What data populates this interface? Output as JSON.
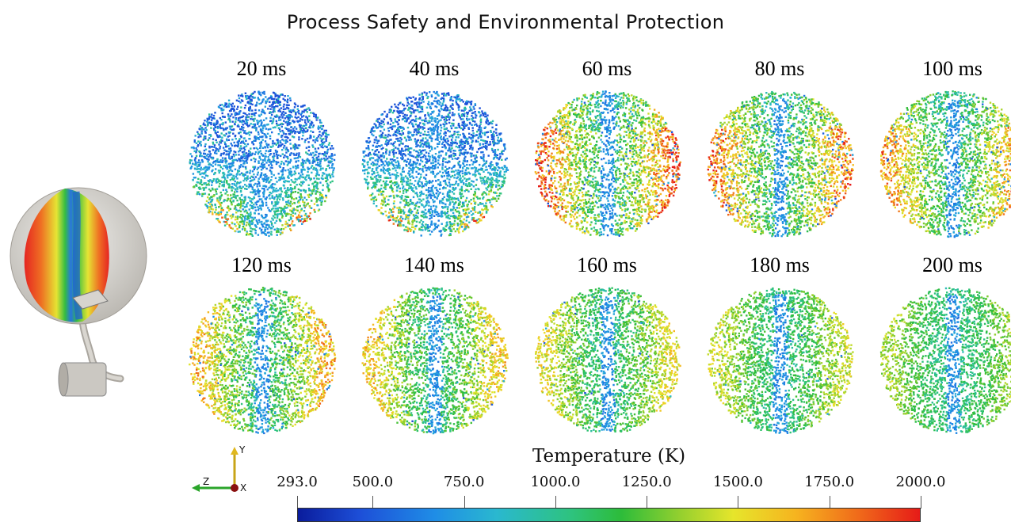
{
  "header": {
    "title": "Process Safety and Environmental Protection"
  },
  "frames": [
    {
      "label": "20 ms",
      "progress": 0.0
    },
    {
      "label": "40 ms",
      "progress": 0.11
    },
    {
      "label": "60 ms",
      "progress": 0.22
    },
    {
      "label": "80 ms",
      "progress": 0.33
    },
    {
      "label": "100 ms",
      "progress": 0.44
    },
    {
      "label": "120 ms",
      "progress": 0.55
    },
    {
      "label": "140 ms",
      "progress": 0.66
    },
    {
      "label": "160 ms",
      "progress": 0.77
    },
    {
      "label": "180 ms",
      "progress": 0.88
    },
    {
      "label": "200 ms",
      "progress": 1.0
    }
  ],
  "colorbar": {
    "title": "Temperature (K)",
    "ticks": [
      "293.0",
      "500.0",
      "750.0",
      "1000.0",
      "1250.0",
      "1500.0",
      "1750.0",
      "2000.0"
    ],
    "tick_values": [
      293,
      500,
      750,
      1000,
      1250,
      1500,
      1750,
      2000
    ],
    "min": 293,
    "max": 2000,
    "colors": [
      "#0a1c9c",
      "#1f8de6",
      "#2ec37e",
      "#2dbc3a",
      "#e6e52b",
      "#f06b1a",
      "#e61b18"
    ]
  },
  "axes": {
    "y_label": "Y",
    "z_label": "Z",
    "x_label": "X"
  }
}
